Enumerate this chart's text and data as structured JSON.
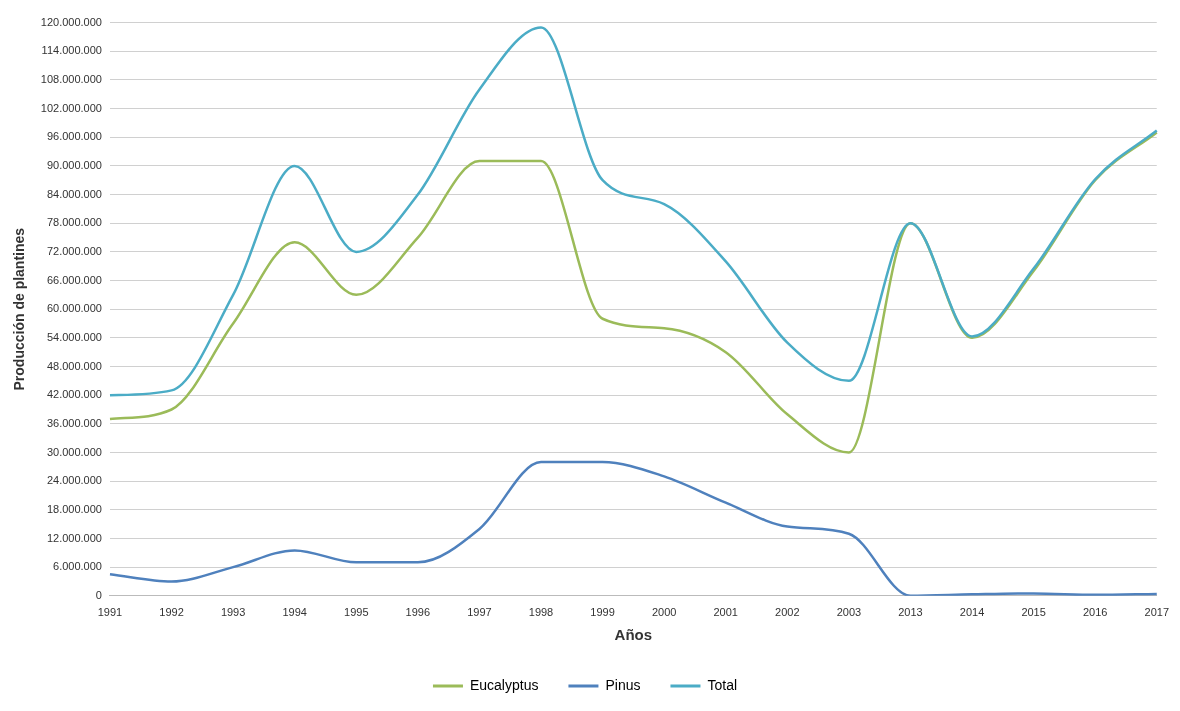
{
  "chart_data": {
    "type": "line",
    "xlabel": "Años",
    "ylabel": "Producción de plantines",
    "categories": [
      "1991",
      "1992",
      "1993",
      "1994",
      "1995",
      "1996",
      "1997",
      "1998",
      "1999",
      "2000",
      "2001",
      "2002",
      "2003",
      "2013",
      "2014",
      "2015",
      "2016",
      "2017"
    ],
    "series": [
      {
        "name": "Eucalyptus",
        "color": "#9bbb59",
        "values": [
          37000000,
          39000000,
          57000000,
          74000000,
          63000000,
          75000000,
          91000000,
          91000000,
          58000000,
          56000000,
          51000000,
          38000000,
          30000000,
          78000000,
          54000000,
          68000000,
          87000000,
          97000000
        ]
      },
      {
        "name": "Pinus",
        "color": "#4f81bd",
        "values": [
          4500000,
          3000000,
          6000000,
          9500000,
          7000000,
          7000000,
          14000000,
          28000000,
          28000000,
          25000000,
          19500000,
          14500000,
          13000000,
          0,
          300000,
          500000,
          200000,
          400000
        ]
      },
      {
        "name": "Total",
        "color": "#4bacc6",
        "values": [
          42000000,
          43000000,
          63000000,
          90000000,
          72000000,
          84000000,
          106000000,
          119000000,
          87000000,
          82000000,
          70000000,
          53000000,
          45000000,
          78000000,
          54300000,
          68500000,
          87200000,
          97400000
        ]
      }
    ],
    "ylim": [
      0,
      120000000
    ],
    "yticks": [
      0,
      {
        "value": 6000000,
        "label": "6.000.000"
      },
      {
        "value": 12000000,
        "label": "12.000.000"
      },
      {
        "value": 18000000,
        "label": "18.000.000"
      },
      {
        "value": 24000000,
        "label": "24.000.000"
      },
      {
        "value": 30000000,
        "label": "30.000.000"
      },
      {
        "value": 36000000,
        "label": "36.000.000"
      },
      {
        "value": 42000000,
        "label": "42.000.000"
      },
      {
        "value": 48000000,
        "label": "48.000.000"
      },
      {
        "value": 54000000,
        "label": "54.000.000"
      },
      {
        "value": 60000000,
        "label": "60.000.000"
      },
      {
        "value": 66000000,
        "label": "66.000.000"
      },
      {
        "value": 72000000,
        "label": "72.000.000"
      },
      {
        "value": 78000000,
        "label": "78.000.000"
      },
      {
        "value": 84000000,
        "label": "84.000.000"
      },
      {
        "value": 90000000,
        "label": "90.000.000"
      },
      {
        "value": 96000000,
        "label": "96.000.000"
      },
      {
        "value": 102000000,
        "label": "102.000.000"
      },
      {
        "value": 108000000,
        "label": "108.000.000"
      },
      {
        "value": 114000000,
        "label": "114.000.000"
      },
      {
        "value": 120000000,
        "label": "120.000.000"
      }
    ],
    "grid": "y",
    "legend": "bottom",
    "marker": "none",
    "line_style": "solid"
  }
}
